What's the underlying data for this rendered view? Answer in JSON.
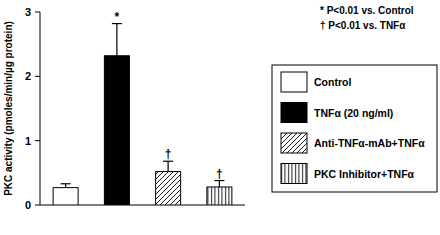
{
  "chart_data": {
    "type": "bar",
    "categories": [
      "Control",
      "TNFα (20 ng/ml)",
      "Anti-TNFα-mAb+TNFα",
      "PKC Inhibitor+TNFα"
    ],
    "values": [
      0.27,
      2.32,
      0.52,
      0.28
    ],
    "errors": [
      0.06,
      0.5,
      0.16,
      0.1
    ],
    "colors": [
      "#ffffff",
      "#000000",
      "#ffffff",
      "#ffffff"
    ],
    "bar_annotations": [
      null,
      "*",
      "†",
      "†"
    ],
    "notes": [
      "* P<0.01 vs. Control",
      "† P<0.01 vs. TNFα"
    ],
    "y_label": "PKC activity (pmoles/min/µg protein)",
    "ylim": [
      0,
      3
    ],
    "yticks": [
      0,
      1,
      2,
      3
    ],
    "legend": "right",
    "tick_labels": "y",
    "grid": false
  }
}
